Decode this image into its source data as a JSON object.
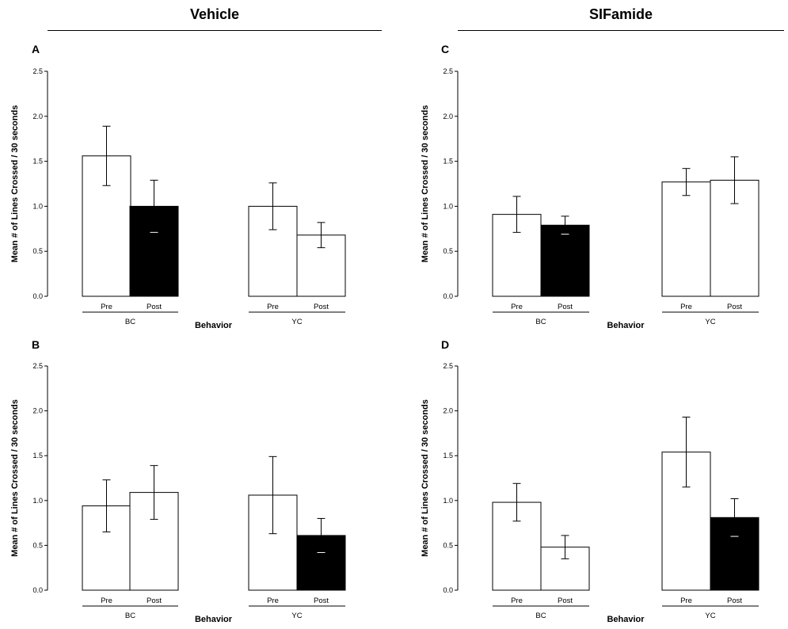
{
  "headings": {
    "vehicle": "Vehicle",
    "sifamide": "SIFamide"
  },
  "chart_data": [
    {
      "panel": "A",
      "type": "bar",
      "ylabel": "Mean # of Lines Crossed / 30 seconds",
      "xlabel": "Behavior",
      "ylim": [
        0,
        2.5
      ],
      "yticks": [
        "0.0",
        "0.5",
        "1.0",
        "1.5",
        "2.0",
        "2.5"
      ],
      "groups": [
        {
          "name": "BC",
          "bars": [
            {
              "label": "Pre",
              "value": 1.56,
              "error": 0.33,
              "fill": "#ffffff"
            },
            {
              "label": "Post",
              "value": 1.0,
              "error": 0.29,
              "fill": "#000000"
            }
          ]
        },
        {
          "name": "YC",
          "bars": [
            {
              "label": "Pre",
              "value": 1.0,
              "error": 0.26,
              "fill": "#ffffff"
            },
            {
              "label": "Post",
              "value": 0.68,
              "error": 0.14,
              "fill": "#ffffff"
            }
          ]
        }
      ]
    },
    {
      "panel": "C",
      "type": "bar",
      "ylabel": "Mean # of Lines Crossed / 30 seconds",
      "xlabel": "Behavior",
      "ylim": [
        0,
        2.5
      ],
      "yticks": [
        "0.0",
        "0.5",
        "1.0",
        "1.5",
        "2.0",
        "2.5"
      ],
      "groups": [
        {
          "name": "BC",
          "bars": [
            {
              "label": "Pre",
              "value": 0.91,
              "error": 0.2,
              "fill": "#ffffff"
            },
            {
              "label": "Post",
              "value": 0.79,
              "error": 0.1,
              "fill": "#000000"
            }
          ]
        },
        {
          "name": "YC",
          "bars": [
            {
              "label": "Pre",
              "value": 1.27,
              "error": 0.15,
              "fill": "#ffffff"
            },
            {
              "label": "Post",
              "value": 1.29,
              "error": 0.26,
              "fill": "#ffffff"
            }
          ]
        }
      ]
    },
    {
      "panel": "B",
      "type": "bar",
      "ylabel": "Mean # of Lines Crossed / 30 seconds",
      "xlabel": "Behavior",
      "ylim": [
        0,
        2.5
      ],
      "yticks": [
        "0.0",
        "0.5",
        "1.0",
        "1.5",
        "2.0",
        "2.5"
      ],
      "groups": [
        {
          "name": "BC",
          "bars": [
            {
              "label": "Pre",
              "value": 0.94,
              "error": 0.29,
              "fill": "#ffffff"
            },
            {
              "label": "Post",
              "value": 1.09,
              "error": 0.3,
              "fill": "#ffffff"
            }
          ]
        },
        {
          "name": "YC",
          "bars": [
            {
              "label": "Pre",
              "value": 1.06,
              "error": 0.43,
              "fill": "#ffffff"
            },
            {
              "label": "Post",
              "value": 0.61,
              "error": 0.19,
              "fill": "#000000"
            }
          ]
        }
      ]
    },
    {
      "panel": "D",
      "type": "bar",
      "ylabel": "Mean # of Lines Crossed / 30 seconds",
      "xlabel": "Behavior",
      "ylim": [
        0,
        2.5
      ],
      "yticks": [
        "0.0",
        "0.5",
        "1.0",
        "1.5",
        "2.0",
        "2.5"
      ],
      "groups": [
        {
          "name": "BC",
          "bars": [
            {
              "label": "Pre",
              "value": 0.98,
              "error": 0.21,
              "fill": "#ffffff"
            },
            {
              "label": "Post",
              "value": 0.48,
              "error": 0.13,
              "fill": "#ffffff"
            }
          ]
        },
        {
          "name": "YC",
          "bars": [
            {
              "label": "Pre",
              "value": 1.54,
              "error": 0.39,
              "fill": "#ffffff"
            },
            {
              "label": "Post",
              "value": 0.81,
              "error": 0.21,
              "fill": "#000000"
            }
          ]
        }
      ]
    }
  ]
}
